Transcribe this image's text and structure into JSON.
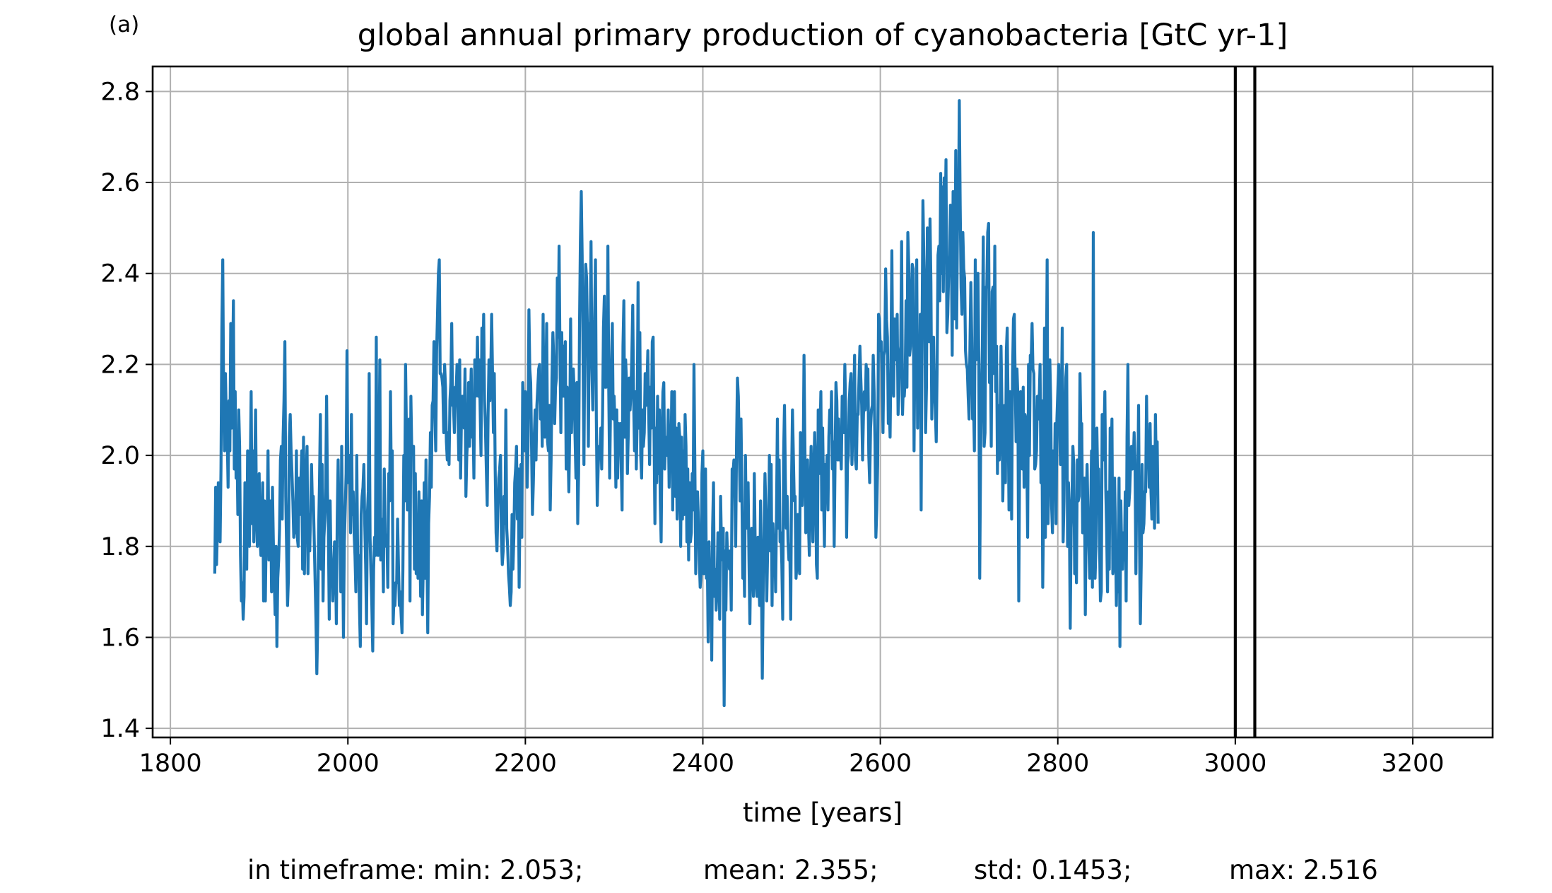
{
  "panel_label": "(a)",
  "stats_line": {
    "min": "in timeframe: min: 2.053;",
    "mean": "mean: 2.355;",
    "std": "std: 0.1453;",
    "max": "max: 2.516"
  },
  "colors": {
    "series": "#1f77b4",
    "grid": "#b0b0b0",
    "vlines": "#000000",
    "axes": "#000000"
  },
  "chart_data": {
    "type": "line",
    "title": "global annual primary production of cyanobacteria [GtC yr-1]",
    "xlabel": "time [years]",
    "ylabel": "",
    "xlim": [
      1780,
      3290
    ],
    "ylim": [
      1.38,
      2.855
    ],
    "xticks": [
      1800,
      2000,
      2200,
      2400,
      2600,
      2800,
      3000,
      3200
    ],
    "yticks": [
      1.4,
      1.6,
      1.8,
      2.0,
      2.2,
      2.4,
      2.6,
      2.8
    ],
    "grid": true,
    "legend": "none",
    "vertical_lines": [
      3000,
      3022
    ],
    "series": [
      {
        "start_year": 1850,
        "step_years": 1,
        "values": [
          1.74,
          1.93,
          1.76,
          1.84,
          1.94,
          1.87,
          1.81,
          1.97,
          2.28,
          2.43,
          2.12,
          2.01,
          2.18,
          2.08,
          2.05,
          1.93,
          2.12,
          2.01,
          2.29,
          2.06,
          2.17,
          2.34,
          1.97,
          2.14,
          1.95,
          2.03,
          1.87,
          2.1,
          2.02,
          1.78,
          1.68,
          1.72,
          1.64,
          1.69,
          1.94,
          1.85,
          1.75,
          2.01,
          1.92,
          1.8,
          1.97,
          2.14,
          1.85,
          2.01,
          1.81,
          1.96,
          2.1,
          1.87,
          1.8,
          1.87,
          1.96,
          1.82,
          1.78,
          1.83,
          1.94,
          1.68,
          1.9,
          1.68,
          1.84,
          1.85,
          2.01,
          1.77,
          1.79,
          1.9,
          1.7,
          1.93,
          1.81,
          1.73,
          1.65,
          1.8,
          1.58,
          1.73,
          1.77,
          1.84,
          1.99,
          2.02,
          1.86,
          2.04,
          2.12,
          2.25,
          1.91,
          1.79,
          1.67,
          1.73,
          2.04,
          2.09,
          2.01,
          1.96,
          1.9,
          1.82,
          1.84,
          1.83,
          2.01,
          1.82,
          1.8,
          1.95,
          1.87,
          1.94,
          2.01,
          1.75,
          2.04,
          1.74,
          1.9,
          1.96,
          2.02,
          1.74,
          1.87,
          1.79,
          1.88,
          1.98,
          1.89,
          1.91,
          1.82,
          1.73,
          1.64,
          1.52,
          1.63,
          1.83,
          1.94,
          2.09,
          1.75,
          1.98,
          1.68,
          1.82,
          1.86,
          1.93,
          2.13,
          1.92,
          1.84,
          1.64,
          1.9,
          1.76,
          1.76,
          1.68,
          1.76,
          1.81,
          1.77,
          1.63,
          1.86,
          1.99,
          1.85,
          1.86,
          1.7,
          2.02,
          1.84,
          1.6,
          1.81,
          1.88,
          1.96,
          2.23,
          1.94,
          1.97,
          2.0,
          1.83,
          2.09,
          1.87,
          1.92,
          1.83,
          1.78,
          1.7,
          2.0,
          1.78,
          1.78,
          1.67,
          1.58,
          1.87,
          1.91,
          1.93,
          1.98,
          1.85,
          1.76,
          1.63,
          1.87,
          1.92,
          2.18,
          1.82,
          1.74,
          1.67,
          1.57,
          1.75,
          1.82,
          1.78,
          2.26,
          1.86,
          1.78,
          1.98,
          2.21,
          1.77,
          1.86,
          1.84,
          1.7,
          1.97,
          1.83,
          1.8,
          1.82,
          1.71,
          1.96,
          1.9,
          2.14,
          1.92,
          2.01,
          1.63,
          1.69,
          1.67,
          1.72,
          1.72,
          1.86,
          1.76,
          1.67,
          1.7,
          1.65,
          1.61,
          1.75,
          2.0,
          1.9,
          2.2,
          2.05,
          1.88,
          2.0,
          2.08,
          1.68,
          2.13,
          2.01,
          2.02,
          2.02,
          1.75,
          1.96,
          1.74,
          1.83,
          1.73,
          1.92,
          1.82,
          1.69,
          1.9,
          1.65,
          1.76,
          1.94,
          1.73,
          1.99,
          1.8,
          1.61,
          1.85,
          1.91,
          2.05,
          1.93,
          2.11,
          2.12,
          2.25,
          2.1,
          2.01,
          2.23,
          2.31,
          2.4,
          2.43,
          2.18,
          2.18,
          2.17,
          2.15,
          2.05,
          2.2,
          2.15,
          2.03,
          1.99,
          2.05,
          1.98,
          2.12,
          2.16,
          2.29,
          2.11,
          2.11,
          2.05,
          2.15,
          2.14,
          2.2,
          2.1,
          1.99,
          2.21,
          1.95,
          2.09,
          2.13,
          2.13,
          2.06,
          2.19,
          1.91,
          2.0,
          2.04,
          2.16,
          2.02,
          2.11,
          2.19,
          2.04,
          2.08,
          1.95,
          2.21,
          2.13,
          2.15,
          2.26,
          2.13,
          2.21,
          2.11,
          2.0,
          2.28,
          2.16,
          2.31,
          2.12,
          2.06,
          1.97,
          1.89,
          2.09,
          2.21,
          2.12,
          2.18,
          2.31,
          2.18,
          2.05,
          2.18,
          1.97,
          1.83,
          1.79,
          1.88,
          1.95,
          1.97,
          2.0,
          1.82,
          1.76,
          1.79,
          1.91,
          1.85,
          2.1,
          1.84,
          1.8,
          1.74,
          1.71,
          1.67,
          1.7,
          1.87,
          1.75,
          1.82,
          1.94,
          1.97,
          2.02,
          1.86,
          1.97,
          1.71,
          1.9,
          1.98,
          1.82,
          2.16,
          2.11,
          2.01,
          2.14,
          2.11,
          1.93,
          2.02,
          2.32,
          2.19,
          2.16,
          2.02,
          1.87,
          1.94,
          2.04,
          2.1,
          1.99,
          2.11,
          2.15,
          2.19,
          2.2,
          2.08,
          2.16,
          2.02,
          2.31,
          2.09,
          2.04,
          2.14,
          2.29,
          2.03,
          2.01,
          2.11,
          1.88,
          1.99,
          2.17,
          2.27,
          2.21,
          2.07,
          2.15,
          2.17,
          2.39,
          2.26,
          2.46,
          2.23,
          2.05,
          2.27,
          2.13,
          2.24,
          2.13,
          2.25,
          1.97,
          2.15,
          2.02,
          1.92,
          2.06,
          2.3,
          2.05,
          2.16,
          2.19,
          2.14,
          2.04,
          1.95,
          2.16,
          1.85,
          1.96,
          2.28,
          2.47,
          2.58,
          2.44,
          2.22,
          1.98,
          2.27,
          2.42,
          2.39,
          2.26,
          2.02,
          2.29,
          2.23,
          2.47,
          2.19,
          2.1,
          2.26,
          2.3,
          2.43,
          2.08,
          1.89,
          1.97,
          2.02,
          2.0,
          2.06,
          1.97,
          2.09,
          2.28,
          2.35,
          2.15,
          2.15,
          2.16,
          2.46,
          2.14,
          1.95,
          2.11,
          2.2,
          2.29,
          2.08,
          2.13,
          2.07,
          1.93,
          2.1,
          1.95,
          2.07,
          2.04,
          2.07,
          1.98,
          1.88,
          2.24,
          2.34,
          2.04,
          2.21,
          2.16,
          1.96,
          2.05,
          2.17,
          2.1,
          2.14,
          2.22,
          2.33,
          2.12,
          2.01,
          2.14,
          1.97,
          2.08,
          2.38,
          2.06,
          2.27,
          2.0,
          1.95,
          2.1,
          2.02,
          2.05,
          2.18,
          2.11,
          2.15,
          2.23,
          2.09,
          1.98,
          2.15,
          2.06,
          2.25,
          2.26,
          2.05,
          1.85,
          2.06,
          1.94,
          2.13,
          1.96,
          2.1,
          1.9,
          1.81,
          2.04,
          2.14,
          2.16,
          1.97,
          2.04,
          2.03,
          2.0,
          2.1,
          1.93,
          2.03,
          1.98,
          2.14,
          1.88,
          2.11,
          2.14,
          1.91,
          2.06,
          1.86,
          1.92,
          2.07,
          2.04,
          1.8,
          2.04,
          1.86,
          2.01,
          1.87,
          2.09,
          2.02,
          1.81,
          1.97,
          1.77,
          1.94,
          1.81,
          1.83,
          1.96,
          1.88,
          2.2,
          1.98,
          1.74,
          1.92,
          1.92,
          1.86,
          1.77,
          1.71,
          1.74,
          1.96,
          2.01,
          1.74,
          1.81,
          1.97,
          1.73,
          1.78,
          1.59,
          1.81,
          1.72,
          1.75,
          1.55,
          1.84,
          1.94,
          1.69,
          1.75,
          1.66,
          1.71,
          1.83,
          1.78,
          1.64,
          1.91,
          1.8,
          1.77,
          1.84,
          1.45,
          1.79,
          1.66,
          1.83,
          1.77,
          1.79,
          1.75,
          1.79,
          1.66,
          1.97,
          1.96,
          1.99,
          1.93,
          1.8,
          2.03,
          2.17,
          2.13,
          2.02,
          1.9,
          2.08,
          1.92,
          1.73,
          1.81,
          1.69,
          2.0,
          1.84,
          1.91,
          1.94,
          1.77,
          1.63,
          1.79,
          1.84,
          1.76,
          1.69,
          1.96,
          1.8,
          1.72,
          1.69,
          1.82,
          1.73,
          1.67,
          1.9,
          1.74,
          1.51,
          1.7,
          1.83,
          1.96,
          1.88,
          1.68,
          1.79,
          1.82,
          2.0,
          1.79,
          1.98,
          1.67,
          1.85,
          1.79,
          1.81,
          1.7,
          1.87,
          2.08,
          1.84,
          1.99,
          1.81,
          1.83,
          1.76,
          1.64,
          2.0,
          2.11,
          1.95,
          1.84,
          1.91,
          1.81,
          1.77,
          1.8,
          1.64,
          1.95,
          2.1,
          2.0,
          1.9,
          1.91,
          1.73,
          1.76,
          1.87,
          1.79,
          1.74,
          2.05,
          1.95,
          1.89,
          1.97,
          2.22,
          2.02,
          1.83,
          1.95,
          1.99,
          1.85,
          1.78,
          1.92,
          2.02,
          1.91,
          1.81,
          1.96,
          2.05,
          1.98,
          1.76,
          1.73,
          2.1,
          1.96,
          2.04,
          2.14,
          1.88,
          2.06,
          1.92,
          1.8,
          1.98,
          1.95,
          2.0,
          1.88,
          2.04,
          2.1,
          2.05,
          2.14,
          1.97,
          2.03,
          1.8,
          1.99,
          2.16,
          2.12,
          1.99,
          2.08,
          1.99,
          2.02,
          1.97,
          2.13,
          2.07,
          2.05,
          2.2,
          2.09,
          1.82,
          1.98,
          2.0,
          2.12,
          2.16,
          2.18,
          1.98,
          2.06,
          2.11,
          2.22,
          1.99,
          1.97,
          2.09,
          2.09,
          2.17,
          2.24,
          2.17,
          2.11,
          1.99,
          2.09,
          2.14,
          2.1,
          2.2,
          2.17,
          2.19,
          2.0,
          1.94,
          2.06,
          2.1,
          2.11,
          2.22,
          2.14,
          2.03,
          1.82,
          1.88,
          1.98,
          2.31,
          2.3,
          2.23,
          2.25,
          2.18,
          2.05,
          2.22,
          2.23,
          2.41,
          2.3,
          2.26,
          2.07,
          2.12,
          2.04,
          2.22,
          2.45,
          2.18,
          2.13,
          2.3,
          2.21,
          2.25,
          2.31,
          2.09,
          2.13,
          2.22,
          2.24,
          2.47,
          2.09,
          2.16,
          2.13,
          2.17,
          2.34,
          2.15,
          2.49,
          2.42,
          2.22,
          2.24,
          2.35,
          2.42,
          2.41,
          2.01,
          2.26,
          2.19,
          2.43,
          2.06,
          2.26,
          2.1,
          2.31,
          1.88,
          2.26,
          2.56,
          2.44,
          2.36,
          2.05,
          2.15,
          2.5,
          2.38,
          2.25,
          2.52,
          2.38,
          2.08,
          2.23,
          2.26,
          2.14,
          2.1,
          2.03,
          2.19,
          2.44,
          2.46,
          2.34,
          2.62,
          2.4,
          2.59,
          2.36,
          2.61,
          2.49,
          2.65,
          2.27,
          2.31,
          2.4,
          2.44,
          2.55,
          2.46,
          2.22,
          2.58,
          2.49,
          2.3,
          2.67,
          2.28,
          2.51,
          2.5,
          2.78,
          2.55,
          2.37,
          2.31,
          2.49,
          2.41,
          2.39,
          2.23,
          2.2,
          2.19,
          2.13,
          2.08,
          2.24,
          2.38,
          2.26,
          2.08,
          2.12,
          2.01,
          2.43,
          2.21,
          2.35,
          2.4,
          2.2,
          1.73,
          2.0,
          2.14,
          2.24,
          2.48,
          2.02,
          2.05,
          2.37,
          2.37,
          2.49,
          2.51,
          2.16,
          2.26,
          2.02,
          2.36,
          2.37,
          2.18,
          2.46,
          2.14,
          2.24,
          1.96,
          2.11,
          1.99,
          2.08,
          2.24,
          2.11,
          1.9,
          2.01,
          2.11,
          1.94,
          2.23,
          2.28,
          2.1,
          1.88,
          2.14,
          2.03,
          1.86,
          2.18,
          2.3,
          2.31,
          2.16,
          2.03,
          2.19,
          2.13,
          1.68,
          2.0,
          2.14,
          2.04,
          1.97,
          2.15,
          1.93,
          2.09,
          2.08,
          2.01,
          1.82,
          2.2,
          2.0,
          2.22,
          2.21,
          2.29,
          2.19,
          2.18,
          1.97,
          1.98,
          2.01,
          2.13,
          2.08,
          2.12,
          2.2,
          1.94,
          2.12,
          1.71,
          1.89,
          2.28,
          1.82,
          2.16,
          2.43,
          1.85,
          1.96,
          2.21,
          2.12,
          1.89,
          1.83,
          2.01,
          1.92,
          2.07,
          1.85,
          2.08,
          2.14,
          2.2,
          2.06,
          1.98,
          2.11,
          2.28,
          1.81,
          1.9,
          2.08,
          2.17,
          2.2,
          1.8,
          1.94,
          1.87,
          1.62,
          1.84,
          1.91,
          2.02,
          1.98,
          1.74,
          1.87,
          1.72,
          1.99,
          1.9,
          1.91,
          2.18,
          2.05,
          2.07,
          1.83,
          1.83,
          1.95,
          1.65,
          1.89,
          1.98,
          1.87,
          1.8,
          1.73,
          1.85,
          2.01,
          1.71,
          2.49,
          1.86,
          1.73,
          1.8,
          2.06,
          1.94,
          1.97,
          1.81,
          1.68,
          1.7,
          2.09,
          1.99,
          2.04,
          2.14,
          1.93,
          1.84,
          1.7,
          1.92,
          1.75,
          2.06,
          1.97,
          2.08,
          1.74,
          1.76,
          1.95,
          1.83,
          1.67,
          1.81,
          1.7,
          1.95,
          1.58,
          1.9,
          1.79,
          1.75,
          1.83,
          1.77,
          1.92,
          1.68,
          2.04,
          2.2,
          1.89,
          1.92,
          1.98,
          2.02,
          1.97,
          1.98,
          2.05,
          1.99,
          1.74,
          1.96,
          1.9,
          2.11,
          1.82,
          1.63,
          1.76,
          1.98,
          1.83,
          1.85,
          1.92,
          1.92,
          2.13,
          1.99,
          2.03,
          1.93,
          2.07,
          1.92,
          1.86,
          2.02,
          1.98,
          1.84,
          2.09,
          1.96,
          2.03,
          1.85
        ]
      }
    ]
  }
}
